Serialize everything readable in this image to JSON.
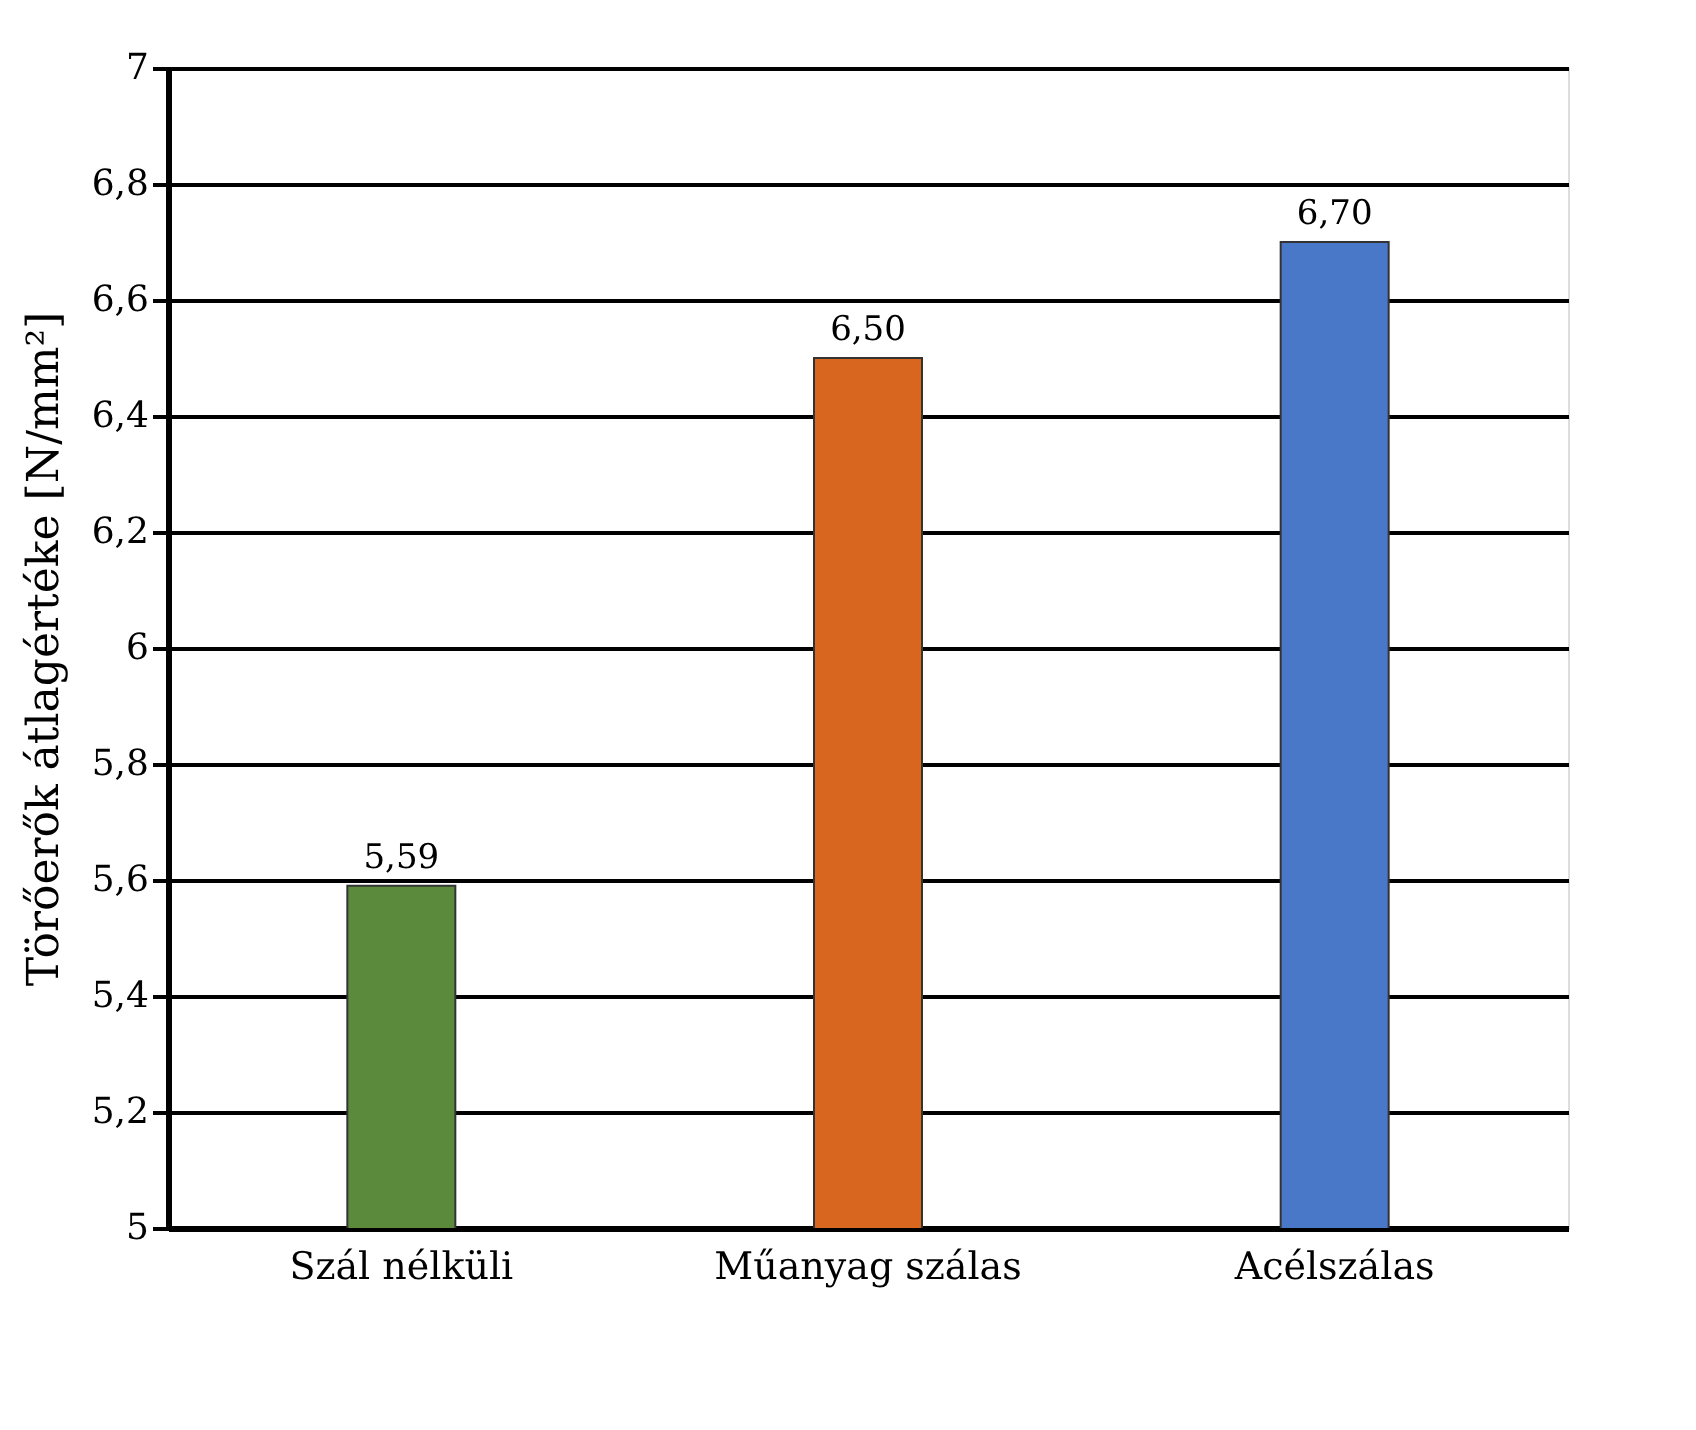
{
  "chart_data": {
    "type": "bar",
    "ylabel": "Törőerők átlagértéke [N/mm²]",
    "categories": [
      "Szál nélküli",
      "Műanyag szálas",
      "Acélszálas"
    ],
    "values": [
      5.59,
      6.5,
      6.7
    ],
    "colors": [
      "#5b8a3c",
      "#d8661f",
      "#4a78c8"
    ],
    "value_labels": [
      "5,59",
      "6,50",
      "6,70"
    ],
    "ylim": [
      5,
      7
    ],
    "yticks": [
      5,
      {
        "value": 5.2,
        "label": "5,2"
      },
      {
        "value": 5.4,
        "label": "5,4"
      },
      {
        "value": 5.6,
        "label": "5,6"
      },
      {
        "value": 5.8,
        "label": "5,8"
      },
      6,
      {
        "value": 6.2,
        "label": "6,2"
      },
      {
        "value": 6.4,
        "label": "6,4"
      },
      {
        "value": 6.6,
        "label": "6,6"
      },
      {
        "value": 6.8,
        "label": "6,8"
      },
      7
    ],
    "grid": "y"
  }
}
